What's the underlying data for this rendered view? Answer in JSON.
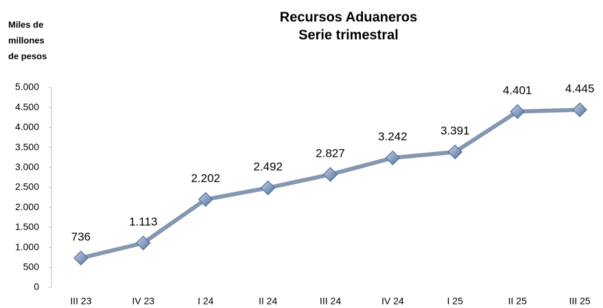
{
  "chart_data": {
    "type": "line",
    "title": "Recursos Aduaneros",
    "subtitle": "Serie trimestral",
    "y_label": [
      "Miles de",
      "millones",
      "de pesos"
    ],
    "categories": [
      "III 23",
      "IV 23",
      "I 24",
      "II 24",
      "III 24",
      "IV 24",
      "I 25",
      "II 25",
      "III 25"
    ],
    "values": [
      736,
      1113,
      2202,
      2492,
      2827,
      3242,
      3391,
      4401,
      4445
    ],
    "value_labels": [
      "736",
      "1.113",
      "2.202",
      "2.492",
      "2.827",
      "3.242",
      "3.391",
      "4.401",
      "4.445"
    ],
    "color": "#8497b0",
    "marker_color": "#4f6f9c",
    "ylim": [
      0,
      5000
    ],
    "yticks": [
      0,
      500,
      {
        "value": 1000,
        "label": "1.000"
      },
      {
        "value": 1500,
        "label": "1.500"
      },
      {
        "value": 2000,
        "label": "2.000"
      },
      {
        "value": 2500,
        "label": "2.500"
      },
      {
        "value": 3000,
        "label": "3.000"
      },
      {
        "value": 3500,
        "label": "3.500"
      },
      {
        "value": 4000,
        "label": "4.000"
      },
      {
        "value": 4500,
        "label": "4.500"
      },
      {
        "value": 5000,
        "label": "5.000"
      }
    ],
    "grid": false
  }
}
